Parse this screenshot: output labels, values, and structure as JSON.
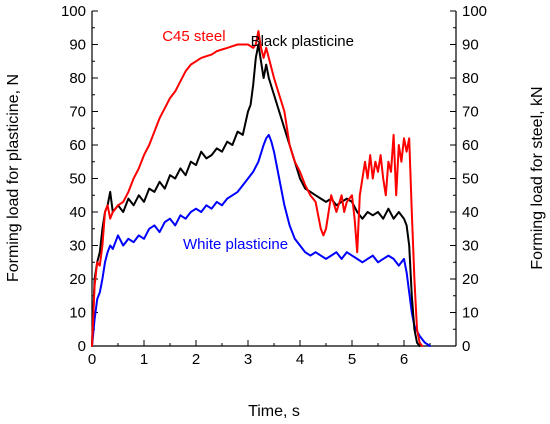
{
  "chart_data": {
    "type": "line",
    "xlabel": "Time, s",
    "ylabel_left": "Forming load for plasticine, N",
    "ylabel_right": "Forming load for steel, kN",
    "xlim": [
      0,
      7
    ],
    "ylim_left": [
      0,
      100
    ],
    "ylim_right": [
      0,
      100
    ],
    "x_ticks": [
      0,
      1,
      2,
      3,
      4,
      5,
      6
    ],
    "y_ticks_left": [
      0,
      10,
      20,
      30,
      40,
      50,
      60,
      70,
      80,
      90,
      100
    ],
    "y_ticks_right": [
      0,
      10,
      20,
      30,
      40,
      50,
      60,
      70,
      80,
      90,
      100
    ],
    "grid": false,
    "series": [
      {
        "name": "C45 steel",
        "color": "#ff0000",
        "axis": "right",
        "x": [
          0,
          0.05,
          0.1,
          0.15,
          0.2,
          0.25,
          0.3,
          0.35,
          0.4,
          0.45,
          0.5,
          0.6,
          0.7,
          0.8,
          0.9,
          1.0,
          1.1,
          1.2,
          1.3,
          1.4,
          1.5,
          1.6,
          1.7,
          1.8,
          1.9,
          2.0,
          2.1,
          2.2,
          2.3,
          2.4,
          2.5,
          2.6,
          2.7,
          2.8,
          2.9,
          3.0,
          3.05,
          3.1,
          3.15,
          3.2,
          3.25,
          3.3,
          3.35,
          3.4,
          3.5,
          3.6,
          3.7,
          3.8,
          3.9,
          4.0,
          4.1,
          4.2,
          4.3,
          4.4,
          4.45,
          4.5,
          4.6,
          4.7,
          4.8,
          4.85,
          4.9,
          5.0,
          5.05,
          5.1,
          5.15,
          5.2,
          5.25,
          5.3,
          5.35,
          5.4,
          5.45,
          5.5,
          5.55,
          5.6,
          5.65,
          5.7,
          5.75,
          5.8,
          5.85,
          5.9,
          5.95,
          6.0,
          6.05,
          6.1,
          6.15,
          6.2,
          6.25,
          6.3,
          6.35
        ],
        "y": [
          0,
          18,
          25,
          24,
          30,
          40,
          42,
          38,
          40,
          41,
          42,
          43,
          46,
          50,
          53,
          57,
          60,
          64,
          68,
          71,
          74,
          76,
          79,
          82,
          84,
          85,
          86,
          86.5,
          87,
          88,
          88.5,
          89,
          89.5,
          90,
          90,
          90,
          89.5,
          89,
          90,
          94,
          89,
          86,
          89,
          86,
          80,
          75,
          70,
          60,
          55,
          52,
          48,
          45,
          43,
          35,
          33,
          35,
          45,
          40,
          45,
          40,
          43,
          45,
          38,
          28,
          45,
          50,
          55,
          50,
          57,
          50,
          55,
          52,
          57,
          50,
          45,
          55,
          52,
          63,
          45,
          60,
          55,
          62,
          58,
          62,
          40,
          20,
          5,
          1,
          0
        ]
      },
      {
        "name": "Black plasticine",
        "color": "#000000",
        "axis": "left",
        "x": [
          0,
          0.05,
          0.1,
          0.15,
          0.2,
          0.25,
          0.3,
          0.35,
          0.4,
          0.45,
          0.5,
          0.6,
          0.7,
          0.8,
          0.9,
          1.0,
          1.1,
          1.2,
          1.3,
          1.4,
          1.5,
          1.6,
          1.7,
          1.8,
          1.9,
          2.0,
          2.1,
          2.2,
          2.3,
          2.4,
          2.5,
          2.6,
          2.7,
          2.8,
          2.9,
          3.0,
          3.05,
          3.1,
          3.15,
          3.2,
          3.25,
          3.3,
          3.35,
          3.4,
          3.5,
          3.6,
          3.7,
          3.8,
          3.9,
          4.0,
          4.1,
          4.2,
          4.3,
          4.4,
          4.5,
          4.6,
          4.7,
          4.8,
          4.9,
          5.0,
          5.1,
          5.2,
          5.3,
          5.4,
          5.5,
          5.6,
          5.7,
          5.8,
          5.9,
          6.0,
          6.05,
          6.1,
          6.15,
          6.2,
          6.25,
          6.3
        ],
        "y": [
          0,
          20,
          25,
          28,
          35,
          40,
          42,
          46,
          40,
          41,
          42,
          40,
          44,
          42,
          45,
          43,
          47,
          46,
          49,
          47,
          51,
          50,
          53,
          51,
          55,
          54,
          58,
          56,
          57,
          59,
          58,
          61,
          60,
          64,
          63,
          70,
          72,
          78,
          86,
          90,
          85,
          80,
          84,
          80,
          75,
          70,
          65,
          60,
          55,
          50,
          47,
          46,
          45,
          44,
          43,
          44,
          42,
          43,
          44,
          43,
          40,
          38,
          40,
          39,
          40,
          38,
          41,
          38,
          40,
          38,
          36,
          30,
          15,
          5,
          1,
          0
        ]
      },
      {
        "name": "White plasticine",
        "color": "#0000ff",
        "axis": "left",
        "x": [
          0,
          0.05,
          0.1,
          0.15,
          0.2,
          0.25,
          0.3,
          0.35,
          0.4,
          0.45,
          0.5,
          0.6,
          0.7,
          0.8,
          0.9,
          1.0,
          1.1,
          1.2,
          1.3,
          1.4,
          1.5,
          1.6,
          1.7,
          1.8,
          1.9,
          2.0,
          2.1,
          2.2,
          2.3,
          2.4,
          2.5,
          2.6,
          2.7,
          2.8,
          2.9,
          3.0,
          3.1,
          3.2,
          3.3,
          3.35,
          3.4,
          3.45,
          3.5,
          3.6,
          3.7,
          3.8,
          3.9,
          4.0,
          4.1,
          4.2,
          4.3,
          4.4,
          4.5,
          4.6,
          4.7,
          4.8,
          4.9,
          5.0,
          5.1,
          5.2,
          5.3,
          5.4,
          5.5,
          5.6,
          5.7,
          5.8,
          5.9,
          6.0,
          6.05,
          6.1,
          6.15,
          6.2,
          6.3,
          6.4,
          6.5
        ],
        "y": [
          0,
          8,
          14,
          16,
          20,
          25,
          28,
          30,
          29,
          31,
          33,
          30,
          32,
          31,
          33,
          32,
          35,
          36,
          34,
          37,
          38,
          36,
          39,
          38,
          40,
          41,
          40,
          42,
          41,
          43,
          42,
          44,
          45,
          46,
          48,
          50,
          52,
          55,
          60,
          62,
          63,
          61,
          58,
          50,
          42,
          36,
          32,
          30,
          28,
          27,
          28,
          27,
          26,
          27,
          28,
          26,
          28,
          27,
          26,
          25,
          26,
          27,
          25,
          26,
          27,
          26,
          24,
          26,
          22,
          16,
          10,
          6,
          3,
          1,
          0
        ]
      }
    ],
    "annotations": [
      {
        "text": "C45 steel",
        "x": 1.35,
        "y": 91,
        "color": "#ff0000"
      },
      {
        "text": "Black plasticine",
        "x": 3.05,
        "y": 89.5,
        "color": "#000000"
      },
      {
        "text": "White plasticine",
        "x": 1.75,
        "y": 29,
        "color": "#0000ff"
      }
    ]
  }
}
